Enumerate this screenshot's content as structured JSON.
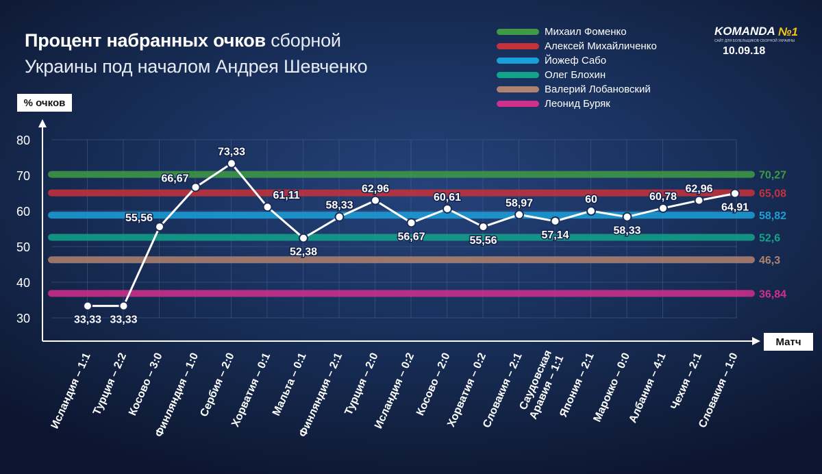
{
  "title": {
    "bold": "Процент набранных очков",
    "rest": "сборной",
    "line2": "Украины под началом Андрея Шевченко"
  },
  "date": "10.09.18",
  "logo": {
    "name": "KOMANDA",
    "number": "№1",
    "tagline": "САЙТ ДЛЯ БОЛЕЛЬЩИКОВ СБОРНОЙ УКРАИНЫ"
  },
  "colors": {
    "line": "#ffffff",
    "text": "#ffffff",
    "grid": "#4a5f8a"
  },
  "chart_data": {
    "type": "line",
    "ylabel": "% очков",
    "xlabel": "Матч",
    "ylim": [
      30,
      80
    ],
    "yticks": [
      30,
      40,
      50,
      60,
      70,
      80
    ],
    "grid": true,
    "categories": [
      "Исландия – 1:1",
      "Турция – 2:2",
      "Косово – 3:0",
      "Финляндия – 1:0",
      "Сербия – 2:0",
      "Хорватия – 0:1",
      "Мальта – 0:1",
      "Финляндия – 2:1",
      "Турция – 2:0",
      "Исландия – 0:2",
      "Косово – 2:0",
      "Хорватия – 0:2",
      "Словакия – 2:1",
      "Саудовская Аравия – 1:1",
      "Япония – 2:1",
      "Марокко – 0:0",
      "Албания – 4:1",
      "Чехия – 2:1",
      "Словакия – 1:0"
    ],
    "category_lines": [
      [
        "Исландия – 1:1"
      ],
      [
        "Турция – 2:2"
      ],
      [
        "Косово – 3:0"
      ],
      [
        "Финляндия – 1:0"
      ],
      [
        "Сербия – 2:0"
      ],
      [
        "Хорватия – 0:1"
      ],
      [
        "Мальта – 0:1"
      ],
      [
        "Финляндия – 2:1"
      ],
      [
        "Турция – 2:0"
      ],
      [
        "Исландия – 0:2"
      ],
      [
        "Косово – 2:0"
      ],
      [
        "Хорватия – 0:2"
      ],
      [
        "Словакия – 2:1"
      ],
      [
        "Саудовская",
        "Аравия – 1:1"
      ],
      [
        "Япония – 2:1"
      ],
      [
        "Марокко – 0:0"
      ],
      [
        "Албания – 4:1"
      ],
      [
        "Чехия – 2:1"
      ],
      [
        "Словакия – 1:0"
      ]
    ],
    "values": [
      33.33,
      33.33,
      55.56,
      66.67,
      73.33,
      61.11,
      52.38,
      58.33,
      62.96,
      56.67,
      60.61,
      55.56,
      58.97,
      57.14,
      60,
      58.33,
      60.78,
      62.96,
      64.91
    ],
    "value_labels": [
      "33,33",
      "33,33",
      "55,56",
      "66,67",
      "73,33",
      "61,11",
      "52,38",
      "58,33",
      "62,96",
      "56,67",
      "60,61",
      "55,56",
      "58,97",
      "57,14",
      "60",
      "58,33",
      "60,78",
      "62,96",
      "64,91"
    ],
    "label_positions": [
      "below",
      "below",
      "left",
      "left",
      "above",
      "right",
      "below",
      "above",
      "above",
      "below",
      "above",
      "below",
      "above",
      "below",
      "above",
      "below",
      "above",
      "above",
      "below"
    ],
    "reference_lines": [
      {
        "name": "Михаил Фоменко",
        "value": 70.27,
        "label": "70,27",
        "color": "#3f9a45"
      },
      {
        "name": "Алексей Михайличенко",
        "value": 65.08,
        "label": "65,08",
        "color": "#c8313a"
      },
      {
        "name": "Йожеф Сабо",
        "value": 58.82,
        "label": "58,82",
        "color": "#1b9fd9"
      },
      {
        "name": "Олег Блохин",
        "value": 52.6,
        "label": "52,6",
        "color": "#12a38b"
      },
      {
        "name": "Валерий Лобановский",
        "value": 46.3,
        "label": "46,3",
        "color": "#b08370"
      },
      {
        "name": "Леонид Буряк",
        "value": 36.84,
        "label": "36,84",
        "color": "#d12f8d"
      }
    ]
  }
}
